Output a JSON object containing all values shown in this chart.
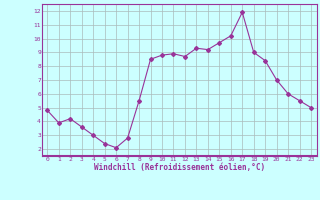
{
  "x": [
    0,
    1,
    2,
    3,
    4,
    5,
    6,
    7,
    8,
    9,
    10,
    11,
    12,
    13,
    14,
    15,
    16,
    17,
    18,
    19,
    20,
    21,
    22,
    23
  ],
  "y": [
    4.8,
    3.9,
    4.2,
    3.6,
    3.0,
    2.4,
    2.1,
    2.8,
    5.5,
    8.5,
    8.8,
    8.9,
    8.7,
    9.3,
    9.2,
    9.7,
    10.2,
    11.9,
    9.0,
    8.4,
    7.0,
    6.0,
    5.5,
    5.0
  ],
  "line_color": "#993399",
  "marker": "D",
  "marker_size": 2,
  "background_color": "#ccffff",
  "grid_color": "#aabbbb",
  "xlabel": "Windchill (Refroidissement éolien,°C)",
  "xlabel_color": "#993399",
  "tick_color": "#993399",
  "xlim": [
    -0.5,
    23.5
  ],
  "ylim": [
    1.5,
    12.5
  ],
  "yticks": [
    2,
    3,
    4,
    5,
    6,
    7,
    8,
    9,
    10,
    11,
    12
  ],
  "xticks": [
    0,
    1,
    2,
    3,
    4,
    5,
    6,
    7,
    8,
    9,
    10,
    11,
    12,
    13,
    14,
    15,
    16,
    17,
    18,
    19,
    20,
    21,
    22,
    23
  ],
  "spine_color": "#993399"
}
